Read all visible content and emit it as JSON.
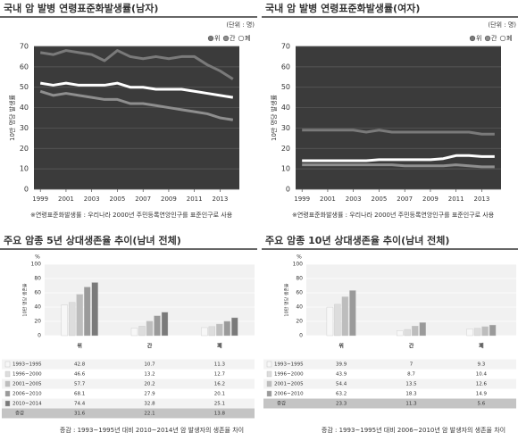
{
  "chart_data": [
    {
      "type": "line",
      "title": "국내 암 발병 연령표준화발생률(남자)",
      "unit": "(단위 : 명)",
      "y_label": "10만 명당 발생률",
      "x": [
        1999,
        2000,
        2001,
        2002,
        2003,
        2004,
        2005,
        2006,
        2007,
        2008,
        2009,
        2010,
        2011,
        2012,
        2013,
        2014
      ],
      "xlim": [
        1998.5,
        2014.5
      ],
      "xticks": [
        1999,
        2001,
        2003,
        2005,
        2007,
        2009,
        2011,
        2013
      ],
      "ylim": [
        0,
        70
      ],
      "yticks": [
        0,
        10,
        20,
        30,
        40,
        50,
        60,
        70
      ],
      "grid": true,
      "series": [
        {
          "name": "위",
          "color": "#7a7a7a",
          "values": [
            67,
            66,
            68,
            67,
            66,
            63,
            68,
            65,
            64,
            65,
            64,
            65,
            65,
            61,
            58,
            54
          ]
        },
        {
          "name": "간",
          "color": "#8e8e8e",
          "values": [
            48,
            46,
            47,
            46,
            45,
            44,
            44,
            42,
            42,
            41,
            40,
            39,
            38,
            37,
            35,
            34
          ]
        },
        {
          "name": "폐",
          "color": "#ffffff",
          "values": [
            52,
            51,
            52,
            51,
            51,
            51,
            52,
            50,
            50,
            49,
            49,
            49,
            48,
            47,
            46,
            45
          ]
        }
      ],
      "note": "※연령표준화발생률 : 우리나라 2000년 주민등록연앙인구를 표준인구로 사용"
    },
    {
      "type": "line",
      "title": "국내 암 발병 연령표준화발생률(여자)",
      "unit": "(단위 : 명)",
      "y_label": "10만 명당 발생률",
      "x": [
        1999,
        2000,
        2001,
        2002,
        2003,
        2004,
        2005,
        2006,
        2007,
        2008,
        2009,
        2010,
        2011,
        2012,
        2013,
        2014
      ],
      "xlim": [
        1998.5,
        2014.5
      ],
      "xticks": [
        1999,
        2001,
        2003,
        2005,
        2007,
        2009,
        2011,
        2013
      ],
      "ylim": [
        0,
        70
      ],
      "yticks": [
        0,
        10,
        20,
        30,
        40,
        50,
        60,
        70
      ],
      "grid": true,
      "series": [
        {
          "name": "위",
          "color": "#7a7a7a",
          "values": [
            29,
            29,
            29,
            29,
            29,
            28,
            29,
            28,
            28,
            28,
            28,
            28,
            28,
            28,
            27,
            27
          ]
        },
        {
          "name": "간",
          "color": "#8e8e8e",
          "values": [
            12,
            12,
            12,
            12,
            12,
            12,
            12,
            12,
            11.5,
            11.5,
            11.5,
            11.5,
            12,
            11.5,
            11,
            11
          ]
        },
        {
          "name": "폐",
          "color": "#ffffff",
          "values": [
            14,
            14,
            14,
            14,
            14,
            14,
            14.5,
            14.5,
            14.5,
            14.5,
            14.5,
            15,
            16.5,
            16.5,
            16,
            16
          ]
        }
      ],
      "note": "※연령표준화발생률 : 우리나라 2000년 주민등록연앙인구를 표준인구로 사용"
    },
    {
      "type": "bar",
      "title": "주요 암종 5년 상대생존율 추이(남녀 전체)",
      "y_unit": "%",
      "y_label": "10만 명당 생존율",
      "categories": [
        "위",
        "간",
        "폐"
      ],
      "ylim": [
        0,
        100
      ],
      "yticks": [
        0,
        20,
        40,
        60,
        80,
        100
      ],
      "grid": true,
      "series": [
        {
          "name": "1993~1995",
          "color": "#f7f7f7",
          "values": [
            42.8,
            10.7,
            11.3
          ]
        },
        {
          "name": "1996~2000",
          "color": "#dddddd",
          "values": [
            46.6,
            13.2,
            12.7
          ]
        },
        {
          "name": "2001~2005",
          "color": "#bdbdbd",
          "values": [
            57.7,
            20.2,
            16.2
          ]
        },
        {
          "name": "2006~2010",
          "color": "#9a9a9a",
          "values": [
            68.1,
            27.9,
            20.1
          ]
        },
        {
          "name": "2010~2014",
          "color": "#7a7a7a",
          "values": [
            74.4,
            32.8,
            25.1
          ]
        }
      ],
      "change_label": "증감",
      "change_values": [
        31.6,
        22.1,
        13.8
      ],
      "note": "증감 : 1993~1995년 대비 2010~2014년 암 발생자의 생존율 차이"
    },
    {
      "type": "bar",
      "title": "주요 암종 10년 상대생존율 추이(남녀 전체)",
      "y_unit": "%",
      "y_label": "10만 명당 생존율",
      "categories": [
        "위",
        "간",
        "폐"
      ],
      "ylim": [
        0,
        100
      ],
      "yticks": [
        0,
        20,
        40,
        60,
        80,
        100
      ],
      "grid": true,
      "series": [
        {
          "name": "1993~1995",
          "color": "#f7f7f7",
          "values": [
            39.9,
            7.0,
            9.3
          ]
        },
        {
          "name": "1996~2000",
          "color": "#dddddd",
          "values": [
            43.9,
            8.7,
            10.4
          ]
        },
        {
          "name": "2001~2005",
          "color": "#bdbdbd",
          "values": [
            54.4,
            13.5,
            12.6
          ]
        },
        {
          "name": "2006~2010",
          "color": "#9a9a9a",
          "values": [
            63.2,
            18.3,
            14.9
          ]
        }
      ],
      "change_label": "증감",
      "change_values": [
        23.3,
        11.3,
        5.6
      ],
      "note": "증감 : 1993~1995년 대비 2006~2010년 암 발생자의 생존율 차이"
    }
  ]
}
